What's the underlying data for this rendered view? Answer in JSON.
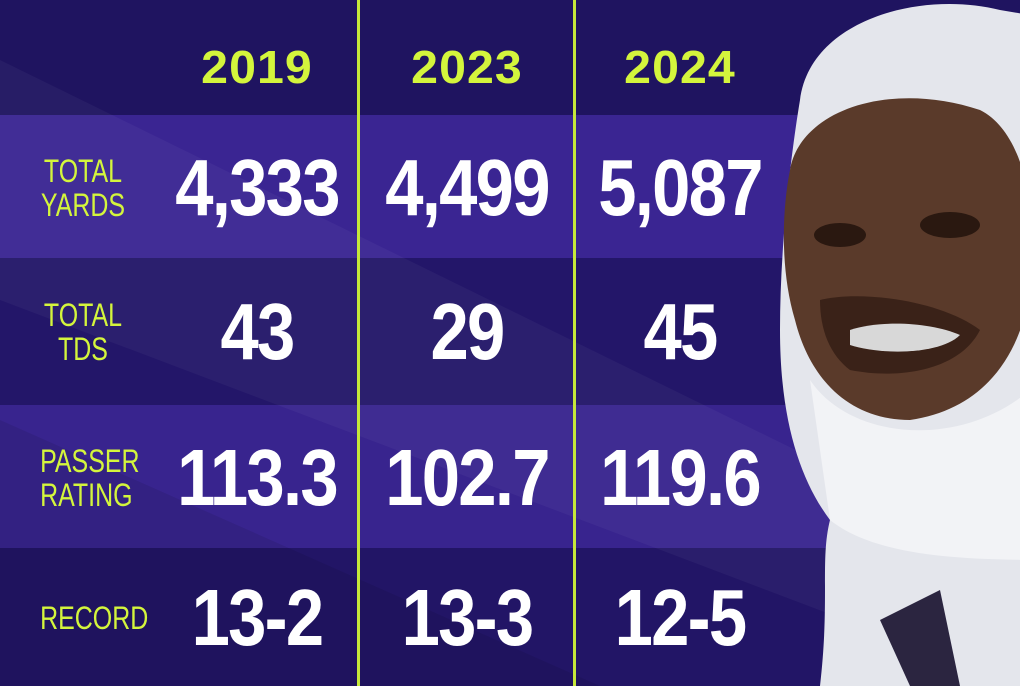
{
  "table": {
    "columns": [
      "2019",
      "2023",
      "2024"
    ],
    "rows": [
      {
        "label": "TOTAL YARDS",
        "cells": [
          "4,333",
          "4,499",
          "5,087"
        ]
      },
      {
        "label": "TOTAL TDS",
        "cells": [
          "43",
          "29",
          "45"
        ]
      },
      {
        "label": "PASSER RATING",
        "cells": [
          "113.3",
          "102.7",
          "119.6"
        ]
      },
      {
        "label": "RECORD",
        "cells": [
          "13-2",
          "13-3",
          "12-5"
        ]
      }
    ]
  }
}
